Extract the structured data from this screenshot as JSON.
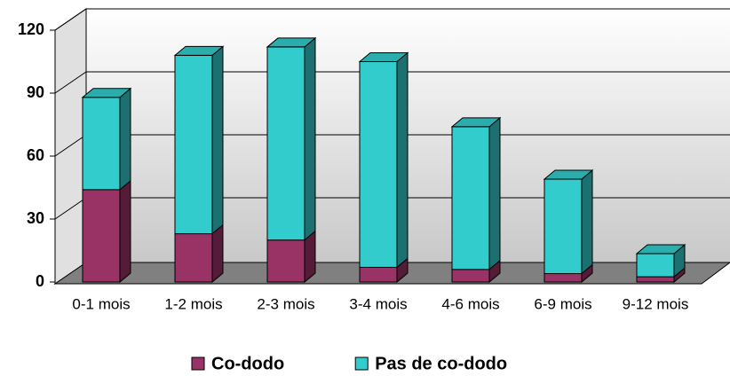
{
  "chart_data": {
    "type": "bar",
    "stacked": true,
    "categories": [
      "0-1 mois",
      "1-2 mois",
      "2-3 mois",
      "3-4 mois",
      "4-6 mois",
      "6-9 mois",
      "9-12 mois"
    ],
    "series": [
      {
        "name": "Co-dodo",
        "color": "#993366",
        "values": [
          44,
          23,
          20,
          7,
          6,
          4,
          2.5
        ]
      },
      {
        "name": "Pas de co-dodo",
        "color": "#33cccc",
        "values": [
          44,
          85,
          92,
          98,
          68,
          45,
          11
        ]
      }
    ],
    "ylim": [
      0,
      120
    ],
    "yticks": [
      0,
      30,
      60,
      90,
      120
    ],
    "grid": true,
    "legend": "bottom"
  }
}
